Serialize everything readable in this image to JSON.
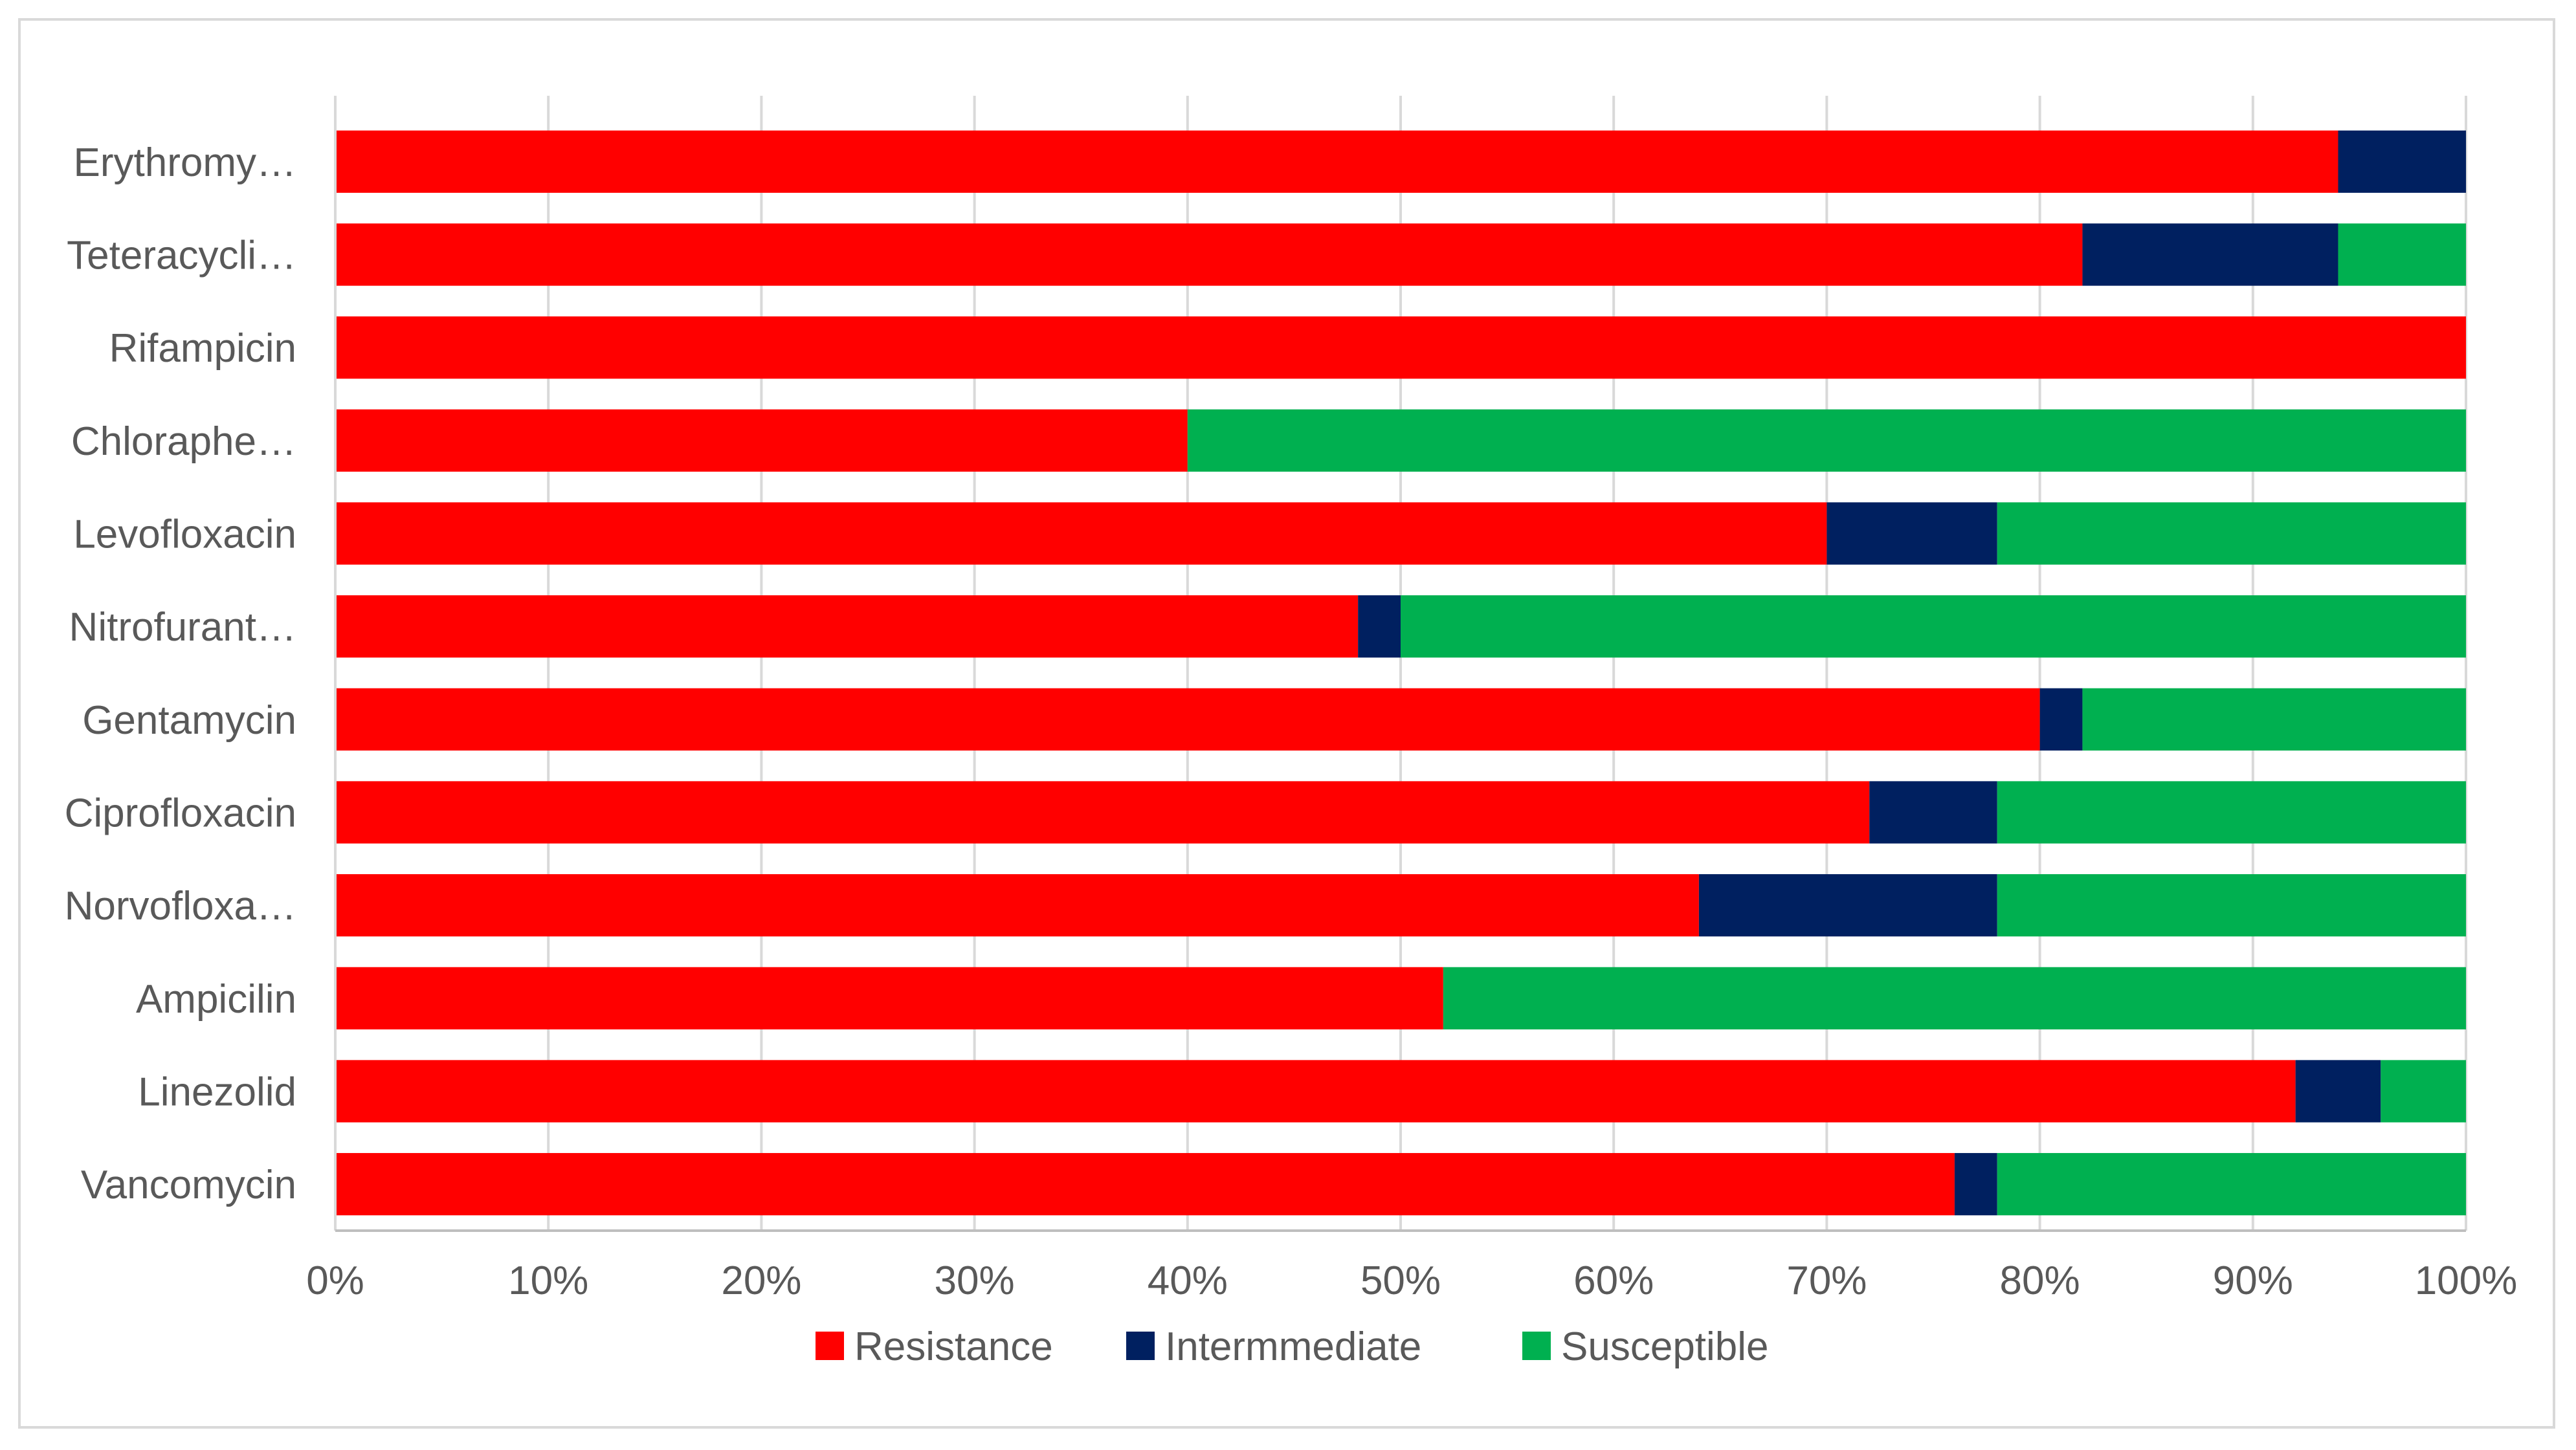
{
  "chart_data": {
    "type": "bar",
    "orientation": "horizontal",
    "stacked": "percent",
    "categories": [
      "Erythromy…",
      "Teteracycli…",
      "Rifampicin",
      "Chloraphe…",
      "Levofloxacin",
      "Nitrofurant…",
      "Gentamycin",
      "Ciprofloxacin",
      "Norvofloxa…",
      "Ampicilin",
      "Linezolid",
      "Vancomycin"
    ],
    "series": [
      {
        "name": "Resistance",
        "color": "#ff0000",
        "values": [
          94,
          82,
          100,
          40,
          70,
          48,
          80,
          72,
          64,
          52,
          92,
          76
        ]
      },
      {
        "name": "Intermmediate",
        "color": "#002060",
        "values": [
          6,
          12,
          0,
          0,
          8,
          2,
          2,
          6,
          14,
          0,
          4,
          2
        ]
      },
      {
        "name": "Susceptible",
        "color": "#00b050",
        "values": [
          0,
          6,
          0,
          60,
          22,
          50,
          18,
          22,
          22,
          48,
          4,
          22
        ]
      }
    ],
    "x_ticks": [
      "0%",
      "10%",
      "20%",
      "30%",
      "40%",
      "50%",
      "60%",
      "70%",
      "80%",
      "90%",
      "100%"
    ],
    "xlim": [
      0,
      100
    ],
    "grid": "vertical",
    "legend": "bottom"
  }
}
